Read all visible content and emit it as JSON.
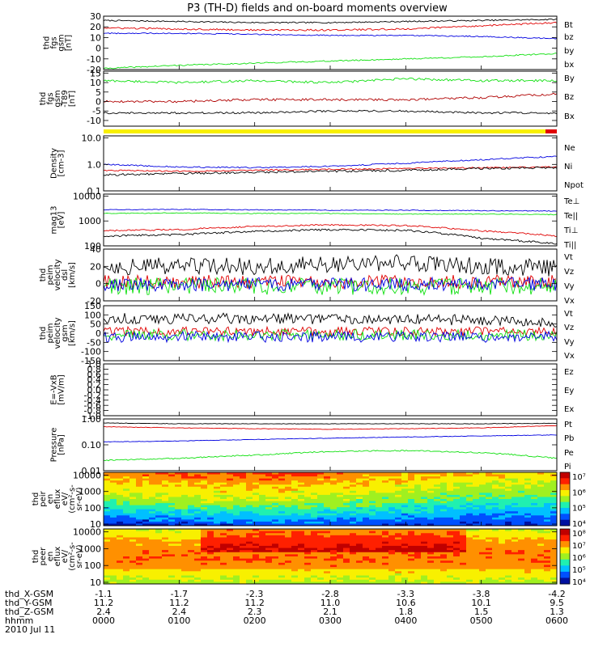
{
  "title": "P3 (TH-D) fields and on-board moments overview",
  "colors": {
    "black": "#000000",
    "red": "#e00000",
    "green": "#10e010",
    "blue": "#0000e0"
  },
  "chart_data": [
    {
      "type": "line",
      "id": "fgs-gsm",
      "ylabel": [
        "thd",
        "fgs",
        "gsm",
        "[nT]"
      ],
      "ylim": [
        -20,
        30
      ],
      "yscale": "linear",
      "yticks": [
        "30",
        "20",
        "10",
        "0",
        "-10",
        "-20"
      ],
      "ytick_values": [
        30,
        20,
        10,
        0,
        -10,
        -20
      ],
      "series": [
        {
          "name": "Bt",
          "color": "#000000",
          "values": [
            26,
            25,
            24,
            24,
            25,
            26,
            27
          ]
        },
        {
          "name": "bz",
          "color": "#e00000",
          "values": [
            19,
            18,
            17,
            17,
            18,
            21,
            24
          ]
        },
        {
          "name": "by",
          "color": "#10e010",
          "values": [
            -19,
            -16,
            -14,
            -12,
            -10,
            -8,
            -5
          ]
        },
        {
          "name": "bx",
          "color": "#0000e0",
          "values": [
            14,
            14,
            13,
            12,
            12,
            11,
            9
          ]
        }
      ]
    },
    {
      "type": "line",
      "id": "fgs-gsm-t89",
      "ylabel": [
        "thd",
        "fgs",
        "gsm",
        "-T89",
        "[nT]"
      ],
      "ylim": [
        -13,
        16
      ],
      "yscale": "linear",
      "yticks": [
        "15",
        "10",
        "5",
        "0",
        "-5",
        "-10"
      ],
      "ytick_values": [
        15,
        10,
        5,
        0,
        -5,
        -10
      ],
      "series": [
        {
          "name": "By",
          "color": "#10e010",
          "values": [
            11,
            10,
            11,
            10,
            12,
            11,
            11
          ]
        },
        {
          "name": "Bz",
          "color": "#b00000",
          "values": [
            0,
            0,
            1,
            1,
            1,
            2,
            4
          ]
        },
        {
          "name": "Bx",
          "color": "#000000",
          "values": [
            -6,
            -6,
            -6,
            -5,
            -5,
            -6,
            -6
          ]
        }
      ]
    },
    {
      "type": "line",
      "id": "density",
      "ylabel": [
        "Density",
        "[cm-3]"
      ],
      "ylim": [
        0.1,
        12
      ],
      "yscale": "log",
      "yticks": [
        "10.0",
        "1.0",
        "0.1"
      ],
      "ytick_values": [
        10,
        1,
        0.1
      ],
      "series": [
        {
          "name": "Ne",
          "color": "#e00000",
          "values": [
            0.6,
            0.55,
            0.6,
            0.65,
            0.7,
            0.75,
            0.8
          ]
        },
        {
          "name": "Ni",
          "color": "#000000",
          "values": [
            0.4,
            0.45,
            0.5,
            0.55,
            0.6,
            0.7,
            0.75
          ]
        },
        {
          "name": "Npot",
          "color": "#0000e0",
          "values": [
            1.0,
            0.8,
            0.75,
            0.85,
            1.1,
            1.5,
            2.0
          ]
        }
      ]
    },
    {
      "type": "line",
      "id": "temperature",
      "ylabel": [
        "mag13",
        "[eV]"
      ],
      "ylim": [
        100,
        12000
      ],
      "yscale": "log",
      "yticks": [
        "10000",
        "1000",
        "100"
      ],
      "ytick_values": [
        10000,
        1000,
        100
      ],
      "series": [
        {
          "name": "Te⊥",
          "color": "#e00000",
          "values": [
            400,
            450,
            600,
            700,
            650,
            400,
            250
          ]
        },
        {
          "name": "Te||",
          "color": "#000000",
          "values": [
            250,
            280,
            380,
            450,
            420,
            200,
            120
          ]
        },
        {
          "name": "Ti⊥",
          "color": "#10e010",
          "values": [
            2000,
            2100,
            2000,
            2000,
            1900,
            1900,
            1800
          ]
        },
        {
          "name": "Ti||",
          "color": "#0000e0",
          "values": [
            2800,
            2900,
            2800,
            2700,
            2700,
            2600,
            2500
          ]
        }
      ]
    },
    {
      "type": "line",
      "id": "peim-velocity-dsl",
      "ylabel": [
        "thd",
        "peim",
        "velocity",
        "dsl",
        "[km/s]"
      ],
      "ylim": [
        -20,
        40
      ],
      "yscale": "linear",
      "yticks": [
        "40",
        "20",
        "0",
        "-20"
      ],
      "ytick_values": [
        40,
        20,
        0,
        -20
      ],
      "series": [
        {
          "name": "Vt",
          "color": "#000000",
          "values": [
            20,
            20,
            20,
            22,
            25,
            20,
            18
          ]
        },
        {
          "name": "Vz",
          "color": "#e00000",
          "values": [
            2,
            2,
            2,
            2,
            2,
            2,
            2
          ]
        },
        {
          "name": "Vy",
          "color": "#10e010",
          "values": [
            -3,
            -3,
            -3,
            -3,
            -3,
            -3,
            -3
          ]
        },
        {
          "name": "Vx",
          "color": "#0000e0",
          "values": [
            -1,
            -1,
            -1,
            -1,
            -1,
            -1,
            -1
          ]
        }
      ]
    },
    {
      "type": "line",
      "id": "peim-velocity-gsm",
      "ylabel": [
        "thd",
        "peim",
        "velocity",
        "gsm",
        "[km/s]"
      ],
      "ylim": [
        -150,
        150
      ],
      "yscale": "linear",
      "yticks": [
        "150",
        "100",
        "50",
        "0",
        "-50",
        "-100",
        "-150"
      ],
      "ytick_values": [
        150,
        100,
        50,
        0,
        -50,
        -100,
        -150
      ],
      "series": [
        {
          "name": "Vt",
          "color": "#000000",
          "values": [
            80,
            80,
            80,
            80,
            80,
            70,
            60
          ]
        },
        {
          "name": "Vz",
          "color": "#e00000",
          "values": [
            10,
            10,
            10,
            10,
            10,
            10,
            10
          ]
        },
        {
          "name": "Vy",
          "color": "#10e010",
          "values": [
            -10,
            -10,
            -10,
            -10,
            -10,
            -10,
            -10
          ]
        },
        {
          "name": "Vx",
          "color": "#0000e0",
          "values": [
            -20,
            -20,
            -20,
            -20,
            -20,
            -20,
            -20
          ]
        }
      ]
    },
    {
      "type": "line",
      "id": "efield",
      "ylabel": [
        "E=-VxB",
        "[mV/m]"
      ],
      "ylim": [
        -1,
        1
      ],
      "yscale": "linear",
      "yticks": [
        "1.0",
        "0.8",
        "0.6",
        "0.4",
        "0.2",
        "0.0",
        "-0.2",
        "-0.4",
        "-0.6",
        "-0.8",
        "-1.0"
      ],
      "ytick_values": [
        1,
        0.8,
        0.6,
        0.4,
        0.2,
        0,
        -0.2,
        -0.4,
        -0.6,
        -0.8,
        -1
      ],
      "series": [
        {
          "name": "Ez",
          "color": "#e00000",
          "values": []
        },
        {
          "name": "Ey",
          "color": "#10e010",
          "values": []
        },
        {
          "name": "Ex",
          "color": "#0000e0",
          "values": []
        }
      ]
    },
    {
      "type": "line",
      "id": "pressure",
      "ylabel": [
        "Pressure",
        "[nPa]"
      ],
      "ylim": [
        0.01,
        1
      ],
      "yscale": "log",
      "yticks": [
        "1.00",
        "0.10",
        "0.01"
      ],
      "ytick_values": [
        1,
        0.1,
        0.01
      ],
      "series": [
        {
          "name": "Pt",
          "color": "#000000",
          "values": [
            0.7,
            0.65,
            0.65,
            0.65,
            0.65,
            0.65,
            0.68
          ]
        },
        {
          "name": "Pb",
          "color": "#e00000",
          "values": [
            0.5,
            0.45,
            0.42,
            0.4,
            0.42,
            0.45,
            0.55
          ]
        },
        {
          "name": "Pe",
          "color": "#10e010",
          "values": [
            0.025,
            0.03,
            0.04,
            0.055,
            0.06,
            0.05,
            0.03
          ]
        },
        {
          "name": "Pi",
          "color": "#0000e0",
          "values": [
            0.13,
            0.14,
            0.16,
            0.18,
            0.2,
            0.22,
            0.24
          ]
        }
      ]
    },
    {
      "type": "heatmap",
      "id": "peir-en-eflux",
      "ylabel": [
        "thd",
        "peir",
        "en",
        "eflux",
        "eV/",
        "(cm²-s-",
        "sr-eV)"
      ],
      "ylim": [
        8,
        15000
      ],
      "yscale": "log",
      "yticks": [
        "10000",
        "1000",
        "100",
        "10"
      ],
      "ytick_values": [
        10000,
        1000,
        100,
        10
      ],
      "colorbar": [
        "10⁷",
        "10⁶",
        "10⁵",
        "10⁴"
      ],
      "colorbar_values": [
        7,
        6,
        5,
        4
      ]
    },
    {
      "type": "heatmap",
      "id": "peer-en-eflux",
      "ylabel": [
        "thd",
        "peer",
        "en",
        "eflux",
        "eV/",
        "(cm²-s-",
        "sr-eV)"
      ],
      "ylim": [
        8,
        15000
      ],
      "yscale": "log",
      "yticks": [
        "10000",
        "1000",
        "100",
        "10"
      ],
      "ytick_values": [
        10000,
        1000,
        100,
        10
      ],
      "colorbar": [
        "10⁸",
        "10⁷",
        "10⁶",
        "10⁵",
        "10⁴"
      ],
      "colorbar_values": [
        8,
        7,
        6,
        5,
        4
      ]
    }
  ],
  "xaxis": {
    "rows": [
      {
        "label": "thd_X-GSM",
        "values": [
          "-1.1",
          "-1.7",
          "-2.3",
          "-2.8",
          "-3.3",
          "-3.8",
          "-4.2"
        ]
      },
      {
        "label": "thd_Y-GSM",
        "values": [
          "11.2",
          "11.2",
          "11.2",
          "11.0",
          "10.6",
          "10.1",
          "9.5"
        ]
      },
      {
        "label": "thd_Z-GSM",
        "values": [
          "2.4",
          "2.4",
          "2.3",
          "2.1",
          "1.8",
          "1.5",
          "1.3"
        ]
      },
      {
        "label": "hhmm",
        "values": [
          "0000",
          "0100",
          "0200",
          "0300",
          "0400",
          "0500",
          "0600"
        ]
      }
    ],
    "date": "2010 Jul 11"
  }
}
